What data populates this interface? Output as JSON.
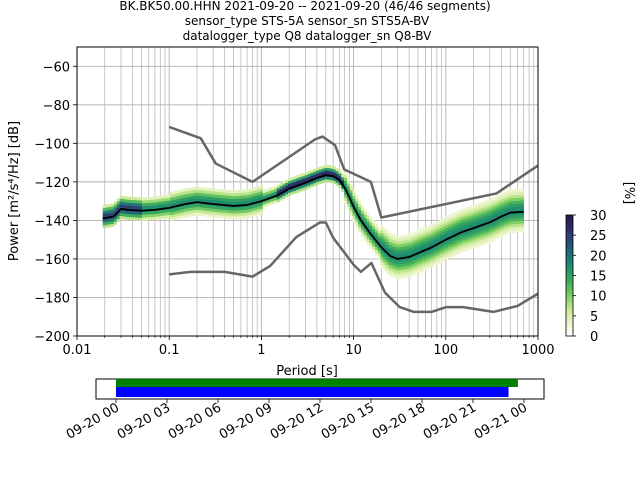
{
  "chart_data": {
    "type": "heatmap",
    "title_lines": [
      "BK.BK50.00.HHN   2021-09-20 -- 2021-09-20  (46/46 segments)",
      "sensor_type STS-5A sensor_sn STS5A-BV",
      "datalogger_type Q8 datalogger_sn Q8-BV"
    ],
    "xlabel": "Period [s]",
    "ylabel": "Power [m²/s⁴/Hz] [dB]",
    "xscale": "log",
    "xlim": [
      0.01,
      1000
    ],
    "ylim": [
      -200,
      -50
    ],
    "xticks": [
      {
        "v": 0.01,
        "label": "0.01"
      },
      {
        "v": 0.1,
        "label": "0.1"
      },
      {
        "v": 1,
        "label": "1"
      },
      {
        "v": 10,
        "label": "10"
      },
      {
        "v": 100,
        "label": "100"
      },
      {
        "v": 1000,
        "label": "1000"
      }
    ],
    "yticks": [
      {
        "v": -60,
        "label": "−60"
      },
      {
        "v": -80,
        "label": "−80"
      },
      {
        "v": -100,
        "label": "−100"
      },
      {
        "v": -120,
        "label": "−120"
      },
      {
        "v": -140,
        "label": "−140"
      },
      {
        "v": -160,
        "label": "−160"
      },
      {
        "v": -180,
        "label": "−180"
      },
      {
        "v": -200,
        "label": "−200"
      }
    ],
    "grid": true,
    "colorbar": {
      "label": "[%]",
      "range": [
        0,
        30
      ],
      "ticks": [
        {
          "v": 0,
          "label": "0"
        },
        {
          "v": 5,
          "label": "5"
        },
        {
          "v": 10,
          "label": "10"
        },
        {
          "v": 15,
          "label": "15"
        },
        {
          "v": 20,
          "label": "20"
        },
        {
          "v": 25,
          "label": "25"
        },
        {
          "v": 30,
          "label": "30"
        }
      ]
    },
    "nhnm": [
      [
        0.1,
        -91.5
      ],
      [
        0.22,
        -97.4
      ],
      [
        0.32,
        -110.5
      ],
      [
        0.8,
        -120.0
      ],
      [
        3.8,
        -98.0
      ],
      [
        4.6,
        -96.5
      ],
      [
        6.3,
        -101.0
      ],
      [
        7.9,
        -113.5
      ],
      [
        15.4,
        -120.0
      ],
      [
        20.0,
        -138.5
      ],
      [
        354.8,
        -126.0
      ],
      [
        1000,
        -111.5
      ]
    ],
    "nlnm": [
      [
        0.1,
        -168.0
      ],
      [
        0.17,
        -166.7
      ],
      [
        0.4,
        -166.7
      ],
      [
        0.8,
        -169.2
      ],
      [
        1.24,
        -163.7
      ],
      [
        2.4,
        -148.6
      ],
      [
        4.3,
        -141.1
      ],
      [
        5.0,
        -141.1
      ],
      [
        6.0,
        -149.0
      ],
      [
        10.0,
        -163.0
      ],
      [
        12.0,
        -166.7
      ],
      [
        15.6,
        -162.1
      ],
      [
        21.9,
        -177.5
      ],
      [
        31.6,
        -185.0
      ],
      [
        45.0,
        -187.5
      ],
      [
        70.0,
        -187.5
      ],
      [
        101.0,
        -185.0
      ],
      [
        154.0,
        -185.0
      ],
      [
        328.0,
        -187.5
      ],
      [
        600.0,
        -184.4
      ],
      [
        1000,
        -178.0
      ]
    ],
    "median": [
      [
        0.019,
        -139.0
      ],
      [
        0.025,
        -138.0
      ],
      [
        0.03,
        -134.0
      ],
      [
        0.035,
        -134.5
      ],
      [
        0.05,
        -135.0
      ],
      [
        0.07,
        -134.5
      ],
      [
        0.1,
        -133.5
      ],
      [
        0.15,
        -131.5
      ],
      [
        0.2,
        -130.5
      ],
      [
        0.3,
        -131.5
      ],
      [
        0.5,
        -132.5
      ],
      [
        0.7,
        -132.0
      ],
      [
        1.0,
        -130.0
      ],
      [
        1.5,
        -127.0
      ],
      [
        2.0,
        -123.5
      ],
      [
        3.0,
        -120.5
      ],
      [
        4.0,
        -118.0
      ],
      [
        5.0,
        -116.5
      ],
      [
        6.0,
        -117.0
      ],
      [
        7.0,
        -119.0
      ],
      [
        8.0,
        -123.0
      ],
      [
        9.0,
        -128.0
      ],
      [
        10.0,
        -133.0
      ],
      [
        12.0,
        -140.0
      ],
      [
        15.0,
        -146.5
      ],
      [
        20.0,
        -154.0
      ],
      [
        25.0,
        -158.5
      ],
      [
        30.0,
        -160.0
      ],
      [
        40.0,
        -159.0
      ],
      [
        50.0,
        -157.0
      ],
      [
        70.0,
        -154.0
      ],
      [
        100.0,
        -150.0
      ],
      [
        150.0,
        -146.0
      ],
      [
        200.0,
        -144.0
      ],
      [
        300.0,
        -141.0
      ],
      [
        400.0,
        -138.0
      ],
      [
        500.0,
        -136.0
      ],
      [
        700.0,
        -135.5
      ]
    ]
  },
  "timeline": {
    "ticks": [
      "09-20 00",
      "09-20 03",
      "09-20 06",
      "09-20 09",
      "09-20 12",
      "09-20 15",
      "09-20 18",
      "09-20 21",
      "09-21 00"
    ],
    "green_fraction_end": 0.985,
    "blue_fraction_end": 0.962
  },
  "colors": {
    "model_line": "#666666",
    "median_line": "#000000",
    "grid": "#b0b0b0",
    "timeline_green": "#008000",
    "timeline_blue": "#0000ff"
  }
}
